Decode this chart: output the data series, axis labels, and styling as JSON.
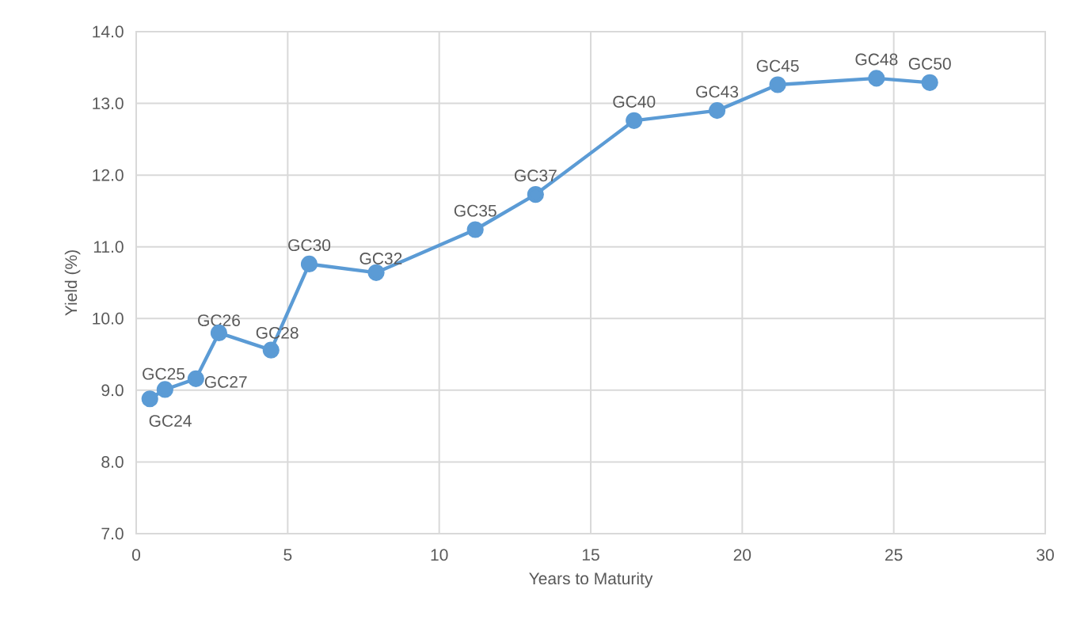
{
  "chart_data": {
    "type": "line",
    "xlabel": "Years to Maturity",
    "ylabel": "Yield (%)",
    "x": [
      0.45,
      0.95,
      1.97,
      2.73,
      4.45,
      5.71,
      7.92,
      11.19,
      13.18,
      16.43,
      19.17,
      21.17,
      24.43,
      26.19
    ],
    "series": [
      {
        "color": "#5b9bd5",
        "values": [
          8.88,
          9.01,
          9.16,
          9.8,
          9.56,
          10.76,
          10.64,
          11.24,
          11.73,
          12.76,
          12.9,
          13.26,
          13.35,
          13.29
        ]
      }
    ],
    "annotations": [
      {
        "text": "GC24",
        "x": 0.45,
        "y": 8.88
      },
      {
        "text": "GC25",
        "x": 0.95,
        "y": 9.01
      },
      {
        "text": "GC27",
        "x": 1.97,
        "y": 9.16
      },
      {
        "text": "GC26",
        "x": 2.73,
        "y": 9.8
      },
      {
        "text": "GC28",
        "x": 4.45,
        "y": 9.56
      },
      {
        "text": "GC30",
        "x": 5.71,
        "y": 10.76
      },
      {
        "text": "GC32",
        "x": 7.92,
        "y": 10.64
      },
      {
        "text": "GC35",
        "x": 11.19,
        "y": 11.24
      },
      {
        "text": "GC37",
        "x": 13.18,
        "y": 11.73
      },
      {
        "text": "GC40",
        "x": 16.43,
        "y": 12.76
      },
      {
        "text": "GC43",
        "x": 19.17,
        "y": 12.9
      },
      {
        "text": "GC45",
        "x": 21.17,
        "y": 13.26
      },
      {
        "text": "GC48",
        "x": 24.43,
        "y": 13.35
      },
      {
        "text": "GC50",
        "x": 26.19,
        "y": 13.29
      }
    ],
    "xlim": [
      0,
      30
    ],
    "xticks": [
      0,
      5,
      10,
      15,
      20,
      25,
      30
    ],
    "ylim": [
      7.0,
      14.0
    ],
    "yticks": [
      {
        "value": 7,
        "label": "7.0"
      },
      {
        "value": 8,
        "label": "8.0"
      },
      {
        "value": 9,
        "label": "9.0"
      },
      {
        "value": 10,
        "label": "10.0"
      },
      {
        "value": 11,
        "label": "11.0"
      },
      {
        "value": 12,
        "label": "12.0"
      },
      {
        "value": 13,
        "label": "13.0"
      },
      {
        "value": 14,
        "label": "14.0"
      }
    ],
    "grid": true,
    "marker": "circle",
    "line_style": "solid"
  }
}
